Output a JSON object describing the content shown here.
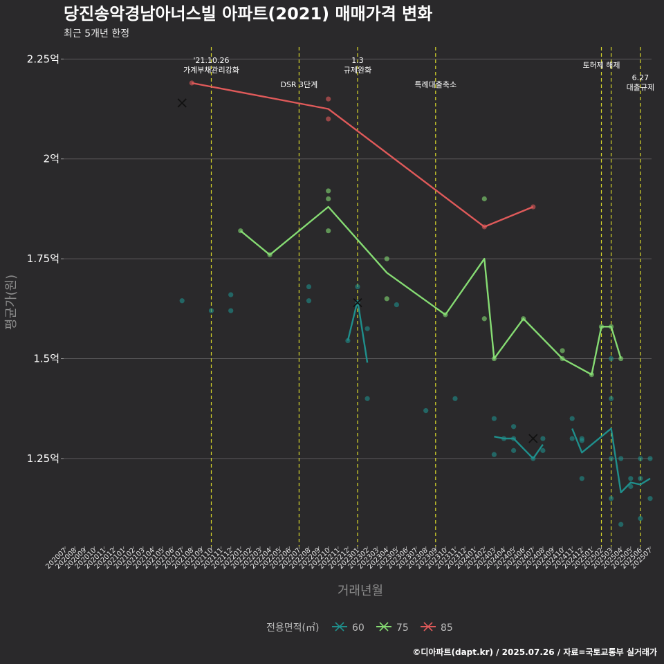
{
  "title": "당진송악경남아너스빌 아파트(2021) 매매가격 변화",
  "subtitle": "최근 5개년 한정",
  "caption": "©디아파트(dapt.kr) / 2025.07.26 / 자료=국토교통부 실거래가",
  "chart_data": {
    "type": "line",
    "xlabel": "거래년월",
    "ylabel": "평균가(원)",
    "ylim": [
      1.03,
      2.28
    ],
    "y_ticks": [
      {
        "value": 1.25,
        "label": "1.25억"
      },
      {
        "value": 1.5,
        "label": "1.5억"
      },
      {
        "value": 1.75,
        "label": "1.75억"
      },
      {
        "value": 2.0,
        "label": "2억"
      },
      {
        "value": 2.25,
        "label": "2.25억"
      }
    ],
    "x_categories": [
      "202007",
      "202008",
      "202009",
      "202010",
      "202011",
      "202012",
      "202101",
      "202102",
      "202103",
      "202104",
      "202105",
      "202106",
      "202107",
      "202108",
      "202109",
      "202110",
      "202111",
      "202112",
      "202201",
      "202202",
      "202203",
      "202204",
      "202205",
      "202206",
      "202207",
      "202208",
      "202209",
      "202210",
      "202211",
      "202212",
      "202301",
      "202302",
      "202303",
      "202304",
      "202305",
      "202306",
      "202307",
      "202308",
      "202309",
      "202310",
      "202311",
      "202312",
      "202401",
      "202402",
      "202403",
      "202404",
      "202405",
      "202406",
      "202407",
      "202408",
      "202409",
      "202410",
      "202411",
      "202412",
      "202501",
      "202502",
      "202503",
      "202504",
      "202505",
      "202506",
      "202507"
    ],
    "grid": true,
    "legend": {
      "title": "전용면적(㎡)",
      "position": "bottom",
      "entries": [
        {
          "label": "60",
          "color": "#1f8f8c"
        },
        {
          "label": "75",
          "color": "#86dc73"
        },
        {
          "label": "85",
          "color": "#e05a5a"
        }
      ]
    },
    "events": [
      {
        "x": "202110",
        "lines": [
          "'21.10.26",
          "가계부채관리강화"
        ],
        "row": 0
      },
      {
        "x": "202207",
        "lines": [
          "DSR 3단계"
        ],
        "row": 2
      },
      {
        "x": "202301",
        "lines": [
          "1.3",
          "규제완화"
        ],
        "row": 0
      },
      {
        "x": "202309",
        "lines": [
          "특례대출축소"
        ],
        "row": 2
      },
      {
        "x": "202502",
        "lines": [
          "토허제 해제"
        ],
        "row": 1
      },
      {
        "x": "202503",
        "lines": [],
        "row": 1
      },
      {
        "x": "202506",
        "lines": [
          "6.27",
          "대출규제"
        ],
        "row": 3
      }
    ],
    "series": [
      {
        "name": "60",
        "color": "#1f8f8c",
        "line_segments": [
          [
            [
              "202212",
              1.545
            ],
            [
              "202301",
              1.645
            ],
            [
              "202302",
              1.49
            ]
          ],
          [
            [
              "202403",
              1.305
            ],
            [
              "202404",
              1.3
            ],
            [
              "202405",
              1.3
            ],
            [
              "202406",
              1.275
            ],
            [
              "202407",
              1.25
            ],
            [
              "202408",
              1.285
            ]
          ],
          [
            [
              "202411",
              1.325
            ],
            [
              "202412",
              1.265
            ],
            [
              "202503",
              1.325
            ],
            [
              "202504",
              1.165
            ],
            [
              "202505",
              1.19
            ],
            [
              "202506",
              1.185
            ],
            [
              "202507",
              1.2
            ]
          ]
        ],
        "points": [
          [
            "202107",
            1.645
          ],
          [
            "202110",
            1.62
          ],
          [
            "202112",
            1.66
          ],
          [
            "202112",
            1.62
          ],
          [
            "202208",
            1.68
          ],
          [
            "202208",
            1.645
          ],
          [
            "202212",
            1.545
          ],
          [
            "202301",
            1.68
          ],
          [
            "202301",
            1.64
          ],
          [
            "202302",
            1.575
          ],
          [
            "202302",
            1.4
          ],
          [
            "202305",
            1.635
          ],
          [
            "202308",
            1.37
          ],
          [
            "202311",
            1.4
          ],
          [
            "202403",
            1.35
          ],
          [
            "202403",
            1.26
          ],
          [
            "202404",
            1.3
          ],
          [
            "202405",
            1.33
          ],
          [
            "202405",
            1.3
          ],
          [
            "202405",
            1.27
          ],
          [
            "202407",
            1.25
          ],
          [
            "202408",
            1.3
          ],
          [
            "202408",
            1.27
          ],
          [
            "202411",
            1.35
          ],
          [
            "202411",
            1.3
          ],
          [
            "202412",
            1.3
          ],
          [
            "202412",
            1.295
          ],
          [
            "202412",
            1.2
          ],
          [
            "202503",
            1.5
          ],
          [
            "202503",
            1.4
          ],
          [
            "202503",
            1.25
          ],
          [
            "202503",
            1.15
          ],
          [
            "202504",
            1.25
          ],
          [
            "202504",
            1.085
          ],
          [
            "202505",
            1.2
          ],
          [
            "202505",
            1.18
          ],
          [
            "202506",
            1.25
          ],
          [
            "202506",
            1.2
          ],
          [
            "202506",
            1.1
          ],
          [
            "202507",
            1.25
          ],
          [
            "202507",
            1.15
          ]
        ],
        "cross_markers": [
          [
            "202301",
            1.64
          ],
          [
            "202407",
            1.3
          ]
        ]
      },
      {
        "name": "75",
        "color": "#86dc73",
        "line_segments": [
          [
            [
              "202201",
              1.82
            ],
            [
              "202204",
              1.76
            ],
            [
              "202210",
              1.88
            ],
            [
              "202304",
              1.715
            ],
            [
              "202310",
              1.61
            ],
            [
              "202402",
              1.75
            ],
            [
              "202403",
              1.5
            ],
            [
              "202406",
              1.6
            ],
            [
              "202410",
              1.5
            ],
            [
              "202501",
              1.46
            ],
            [
              "202502",
              1.58
            ],
            [
              "202503",
              1.58
            ],
            [
              "202504",
              1.5
            ]
          ]
        ],
        "points": [
          [
            "202201",
            1.82
          ],
          [
            "202204",
            1.76
          ],
          [
            "202210",
            1.92
          ],
          [
            "202210",
            1.9
          ],
          [
            "202210",
            1.82
          ],
          [
            "202304",
            1.75
          ],
          [
            "202304",
            1.65
          ],
          [
            "202310",
            1.61
          ],
          [
            "202402",
            1.9
          ],
          [
            "202402",
            1.6
          ],
          [
            "202403",
            1.5
          ],
          [
            "202406",
            1.6
          ],
          [
            "202410",
            1.52
          ],
          [
            "202410",
            1.5
          ],
          [
            "202501",
            1.46
          ],
          [
            "202502",
            1.58
          ],
          [
            "202503",
            1.58
          ],
          [
            "202504",
            1.5
          ]
        ],
        "cross_markers": []
      },
      {
        "name": "85",
        "color": "#e05a5a",
        "line_segments": [
          [
            [
              "202108",
              2.19
            ],
            [
              "202210",
              2.125
            ],
            [
              "202402",
              1.83
            ],
            [
              "202407",
              1.88
            ]
          ]
        ],
        "points": [
          [
            "202108",
            2.19
          ],
          [
            "202210",
            2.15
          ],
          [
            "202210",
            2.1
          ],
          [
            "202402",
            1.83
          ],
          [
            "202407",
            1.88
          ]
        ],
        "cross_markers": [
          [
            "202107",
            2.14
          ]
        ]
      }
    ]
  }
}
